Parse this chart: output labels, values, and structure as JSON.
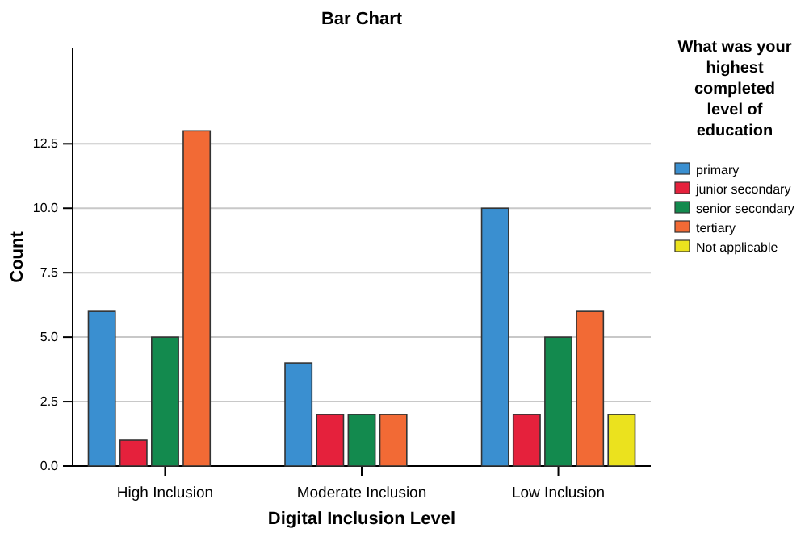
{
  "chart_data": {
    "type": "bar",
    "title": "Bar Chart",
    "xlabel": "Digital Inclusion Level",
    "ylabel": "Count",
    "legend_title": "What was your highest completed level of education",
    "categories": [
      "High Inclusion",
      "Moderate Inclusion",
      "Low Inclusion"
    ],
    "series": [
      {
        "name": "primary",
        "color": "#3a8fd0",
        "values": [
          6,
          4,
          10
        ]
      },
      {
        "name": "junior secondary",
        "color": "#e5213c",
        "values": [
          1,
          2,
          2
        ]
      },
      {
        "name": "senior secondary",
        "color": "#138a4e",
        "values": [
          5,
          2,
          5
        ]
      },
      {
        "name": "tertiary",
        "color": "#f26a35",
        "values": [
          13,
          2,
          6
        ]
      },
      {
        "name": "Not applicable",
        "color": "#ebe21e",
        "values": [
          null,
          null,
          2
        ]
      }
    ],
    "ylim": [
      0,
      16.2
    ],
    "yticks": [
      {
        "value": 0,
        "label": "0.0"
      },
      {
        "value": 2.5,
        "label": "2.5"
      },
      {
        "value": 5,
        "label": "5.0"
      },
      {
        "value": 7.5,
        "label": "7.5"
      },
      {
        "value": 10,
        "label": "10.0"
      },
      {
        "value": 12.5,
        "label": "12.5"
      }
    ],
    "grid": "y",
    "legend": "right"
  }
}
